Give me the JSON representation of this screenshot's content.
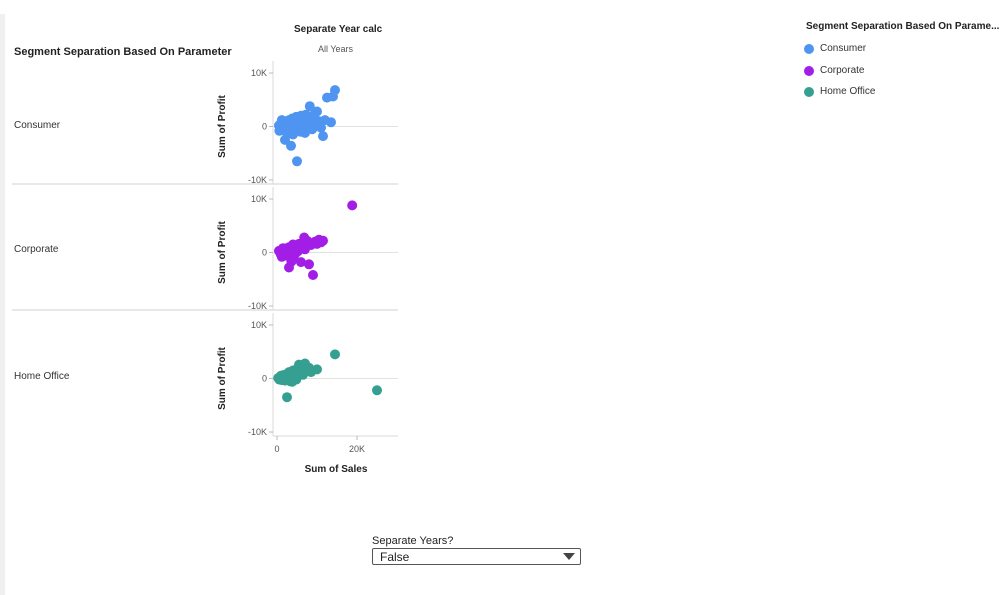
{
  "chart_data": {
    "type": "scatter",
    "title": "Separate Year calc",
    "subtitle": "All Years",
    "row_header": "Segment Separation Based On Parameter",
    "xlabel": "Sum of Sales",
    "ylabel": "Sum of Profit",
    "xlim": [
      0,
      30000
    ],
    "ylim": [
      -10000,
      10000
    ],
    "x_ticks": [
      "0",
      "20K"
    ],
    "y_ticks": [
      "10K",
      "0",
      "-10K"
    ],
    "grid": false,
    "legend_title": "Segment Separation Based On Parame...",
    "legend_position": "top-right",
    "series": [
      {
        "name": "Consumer",
        "color": "#4e94f0",
        "points": [
          [
            500,
            200
          ],
          [
            800,
            -300
          ],
          [
            1000,
            500
          ],
          [
            1200,
            -100
          ],
          [
            1500,
            800
          ],
          [
            1800,
            300
          ],
          [
            2000,
            -600
          ],
          [
            2200,
            1000
          ],
          [
            2500,
            400
          ],
          [
            2800,
            -200
          ],
          [
            3000,
            1200
          ],
          [
            3200,
            600
          ],
          [
            3500,
            -900
          ],
          [
            3800,
            1500
          ],
          [
            4000,
            200
          ],
          [
            4200,
            -400
          ],
          [
            4500,
            900
          ],
          [
            4800,
            1800
          ],
          [
            5000,
            300
          ],
          [
            5200,
            -700
          ],
          [
            5500,
            1100
          ],
          [
            5800,
            600
          ],
          [
            6000,
            2000
          ],
          [
            6200,
            -300
          ],
          [
            6500,
            1400
          ],
          [
            6800,
            800
          ],
          [
            7000,
            -1200
          ],
          [
            7200,
            2200
          ],
          [
            7500,
            1000
          ],
          [
            7800,
            300
          ],
          [
            8000,
            1600
          ],
          [
            8200,
            3800
          ],
          [
            8500,
            700
          ],
          [
            8800,
            -500
          ],
          [
            9000,
            1900
          ],
          [
            9200,
            1200
          ],
          [
            9500,
            2500
          ],
          [
            10000,
            2800
          ],
          [
            10500,
            1000
          ],
          [
            11000,
            -200
          ],
          [
            11500,
            -1800
          ],
          [
            12000,
            1200
          ],
          [
            12500,
            5400
          ],
          [
            13500,
            800
          ],
          [
            14000,
            5600
          ],
          [
            14500,
            6800
          ],
          [
            3500,
            -3600
          ],
          [
            5000,
            -6500
          ],
          [
            2000,
            -2500
          ],
          [
            4000,
            -1500
          ],
          [
            6000,
            -1000
          ],
          [
            2500,
            -1200
          ],
          [
            1200,
            1200
          ],
          [
            3300,
            400
          ],
          [
            600,
            -800
          ],
          [
            9800,
            200
          ]
        ]
      },
      {
        "name": "Corporate",
        "color": "#a21ee6",
        "points": [
          [
            500,
            300
          ],
          [
            1000,
            -400
          ],
          [
            1500,
            800
          ],
          [
            2000,
            200
          ],
          [
            2500,
            -600
          ],
          [
            3000,
            1000
          ],
          [
            3500,
            400
          ],
          [
            4000,
            1500
          ],
          [
            4500,
            -300
          ],
          [
            5000,
            900
          ],
          [
            5500,
            1600
          ],
          [
            6000,
            -1800
          ],
          [
            6500,
            1200
          ],
          [
            7000,
            600
          ],
          [
            7500,
            2200
          ],
          [
            8000,
            -2200
          ],
          [
            8500,
            1400
          ],
          [
            9000,
            -4200
          ],
          [
            9500,
            2000
          ],
          [
            10000,
            1600
          ],
          [
            10500,
            2400
          ],
          [
            11000,
            1900
          ],
          [
            11500,
            2200
          ],
          [
            3000,
            -2800
          ],
          [
            4000,
            -1200
          ],
          [
            2000,
            700
          ],
          [
            1200,
            -800
          ],
          [
            5200,
            200
          ],
          [
            6800,
            2800
          ],
          [
            18800,
            8800
          ],
          [
            700,
            100
          ],
          [
            3600,
            -1700
          ]
        ]
      },
      {
        "name": "Home Office",
        "color": "#35a091",
        "points": [
          [
            300,
            100
          ],
          [
            600,
            -200
          ],
          [
            900,
            400
          ],
          [
            1200,
            -300
          ],
          [
            1500,
            600
          ],
          [
            1800,
            200
          ],
          [
            2000,
            -400
          ],
          [
            2300,
            800
          ],
          [
            2600,
            300
          ],
          [
            3000,
            1200
          ],
          [
            3300,
            -500
          ],
          [
            3600,
            700
          ],
          [
            4000,
            1500
          ],
          [
            4300,
            200
          ],
          [
            4600,
            900
          ],
          [
            5000,
            1800
          ],
          [
            5500,
            2600
          ],
          [
            6000,
            1200
          ],
          [
            6500,
            700
          ],
          [
            7000,
            2800
          ],
          [
            7500,
            1600
          ],
          [
            8000,
            2000
          ],
          [
            8500,
            1200
          ],
          [
            10000,
            1700
          ],
          [
            14500,
            4500
          ],
          [
            25000,
            -2200
          ],
          [
            2500,
            -3500
          ],
          [
            3800,
            -600
          ],
          [
            1000,
            500
          ],
          [
            4800,
            -200
          ]
        ]
      }
    ]
  },
  "control": {
    "label": "Separate Years?",
    "value": "False"
  }
}
